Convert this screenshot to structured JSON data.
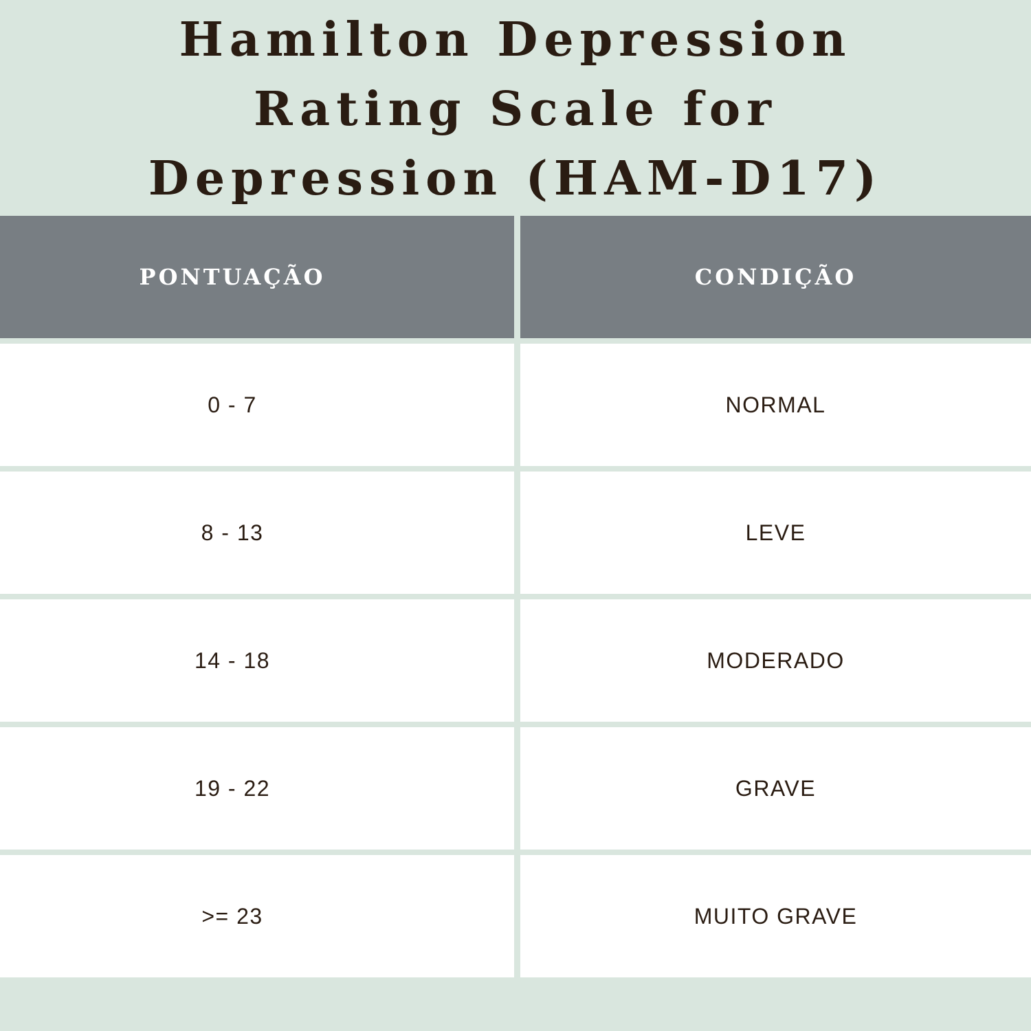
{
  "title": {
    "line1": "Hamilton Depression",
    "line2": "Rating Scale for",
    "line3": "Depression (HAM-D17)"
  },
  "table": {
    "headers": [
      "PONTUAÇÃO",
      "CONDIÇÃO"
    ],
    "rows": [
      [
        "0 - 7",
        "NORMAL"
      ],
      [
        "8 - 13",
        "LEVE"
      ],
      [
        "14 - 18",
        "MODERADO"
      ],
      [
        "19 - 22",
        "GRAVE"
      ],
      [
        ">= 23",
        "MUITO GRAVE"
      ]
    ]
  },
  "colors": {
    "background": "#d9e6de",
    "header_background": "#787e83",
    "header_text": "#ffffff",
    "cell_background": "#ffffff",
    "text": "#2a1c12"
  }
}
